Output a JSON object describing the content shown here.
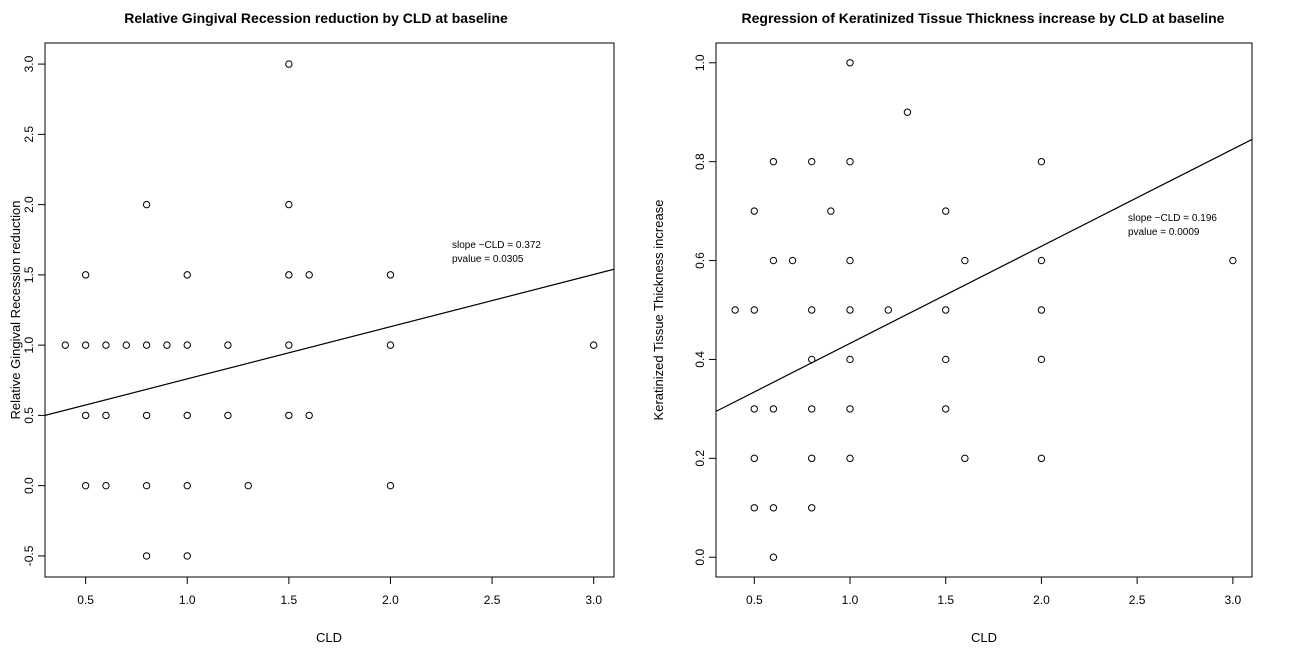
{
  "chart_data": [
    {
      "type": "scatter",
      "title": "Relative Gingival Recession reduction by CLD at baseline",
      "xlabel": "CLD",
      "ylabel": "Relative Gingival Recession reduction",
      "xlim": [
        0.3,
        3.1
      ],
      "ylim": [
        -0.65,
        3.15
      ],
      "xticks": [
        0.5,
        1.0,
        1.5,
        2.0,
        2.5,
        3.0
      ],
      "xtick_labels": [
        "0.5",
        "1.0",
        "1.5",
        "2.0",
        "2.5",
        "3.0"
      ],
      "yticks": [
        -0.5,
        0.0,
        0.5,
        1.0,
        1.5,
        2.0,
        2.5,
        3.0
      ],
      "ytick_labels": [
        "-0.5",
        "0.0",
        "0.5",
        "1.0",
        "1.5",
        "2.0",
        "2.5",
        "3.0"
      ],
      "points": [
        [
          0.4,
          1.0
        ],
        [
          0.5,
          1.5
        ],
        [
          0.5,
          1.0
        ],
        [
          0.5,
          0.5
        ],
        [
          0.5,
          0.0
        ],
        [
          0.6,
          1.0
        ],
        [
          0.6,
          0.5
        ],
        [
          0.6,
          0.0
        ],
        [
          0.7,
          1.0
        ],
        [
          0.8,
          2.0
        ],
        [
          0.8,
          1.0
        ],
        [
          0.8,
          0.5
        ],
        [
          0.8,
          0.0
        ],
        [
          0.8,
          -0.5
        ],
        [
          0.9,
          1.0
        ],
        [
          1.0,
          1.5
        ],
        [
          1.0,
          1.0
        ],
        [
          1.0,
          0.5
        ],
        [
          1.0,
          0.0
        ],
        [
          1.0,
          -0.5
        ],
        [
          1.2,
          1.0
        ],
        [
          1.2,
          0.5
        ],
        [
          1.3,
          0.0
        ],
        [
          1.5,
          3.0
        ],
        [
          1.5,
          2.0
        ],
        [
          1.5,
          1.5
        ],
        [
          1.5,
          1.0
        ],
        [
          1.5,
          0.5
        ],
        [
          1.6,
          1.5
        ],
        [
          1.6,
          0.5
        ],
        [
          2.0,
          1.5
        ],
        [
          2.0,
          1.0
        ],
        [
          2.0,
          0.0
        ],
        [
          3.0,
          1.0
        ]
      ],
      "regression_line": {
        "x": [
          0.3,
          3.1
        ],
        "y": [
          0.5,
          1.54
        ]
      },
      "annotations": [
        "slope ~CLD  =  0.372",
        "pvalue =  0.0305"
      ]
    },
    {
      "type": "scatter",
      "title": "Regression of Keratinized Tissue Thickness increase by CLD at baseline",
      "xlabel": "CLD",
      "ylabel": "Keratinized Tissue Thickness increase",
      "xlim": [
        0.3,
        3.1
      ],
      "ylim": [
        -0.04,
        1.04
      ],
      "xticks": [
        0.5,
        1.0,
        1.5,
        2.0,
        2.5,
        3.0
      ],
      "xtick_labels": [
        "0.5",
        "1.0",
        "1.5",
        "2.0",
        "2.5",
        "3.0"
      ],
      "yticks": [
        0.0,
        0.2,
        0.4,
        0.6,
        0.8,
        1.0
      ],
      "ytick_labels": [
        "0.0",
        "0.2",
        "0.4",
        "0.6",
        "0.8",
        "1.0"
      ],
      "points": [
        [
          0.4,
          0.5
        ],
        [
          0.5,
          0.7
        ],
        [
          0.5,
          0.5
        ],
        [
          0.5,
          0.3
        ],
        [
          0.5,
          0.2
        ],
        [
          0.5,
          0.1
        ],
        [
          0.6,
          0.8
        ],
        [
          0.6,
          0.6
        ],
        [
          0.6,
          0.3
        ],
        [
          0.6,
          0.1
        ],
        [
          0.6,
          0.0
        ],
        [
          0.7,
          0.6
        ],
        [
          0.8,
          0.8
        ],
        [
          0.8,
          0.5
        ],
        [
          0.8,
          0.4
        ],
        [
          0.8,
          0.3
        ],
        [
          0.8,
          0.2
        ],
        [
          0.8,
          0.1
        ],
        [
          0.9,
          0.7
        ],
        [
          1.0,
          1.0
        ],
        [
          1.0,
          0.8
        ],
        [
          1.0,
          0.6
        ],
        [
          1.0,
          0.5
        ],
        [
          1.0,
          0.4
        ],
        [
          1.0,
          0.3
        ],
        [
          1.0,
          0.2
        ],
        [
          1.2,
          0.5
        ],
        [
          1.3,
          0.9
        ],
        [
          1.5,
          0.7
        ],
        [
          1.5,
          0.5
        ],
        [
          1.5,
          0.4
        ],
        [
          1.5,
          0.3
        ],
        [
          1.6,
          0.6
        ],
        [
          1.6,
          0.2
        ],
        [
          2.0,
          0.8
        ],
        [
          2.0,
          0.6
        ],
        [
          2.0,
          0.5
        ],
        [
          2.0,
          0.4
        ],
        [
          2.0,
          0.2
        ],
        [
          3.0,
          0.6
        ]
      ],
      "regression_line": {
        "x": [
          0.3,
          3.1
        ],
        "y": [
          0.295,
          0.845
        ]
      },
      "annotations": [
        "slope ~CLD  =  0.196",
        "pvalue =  0.0009"
      ]
    }
  ]
}
